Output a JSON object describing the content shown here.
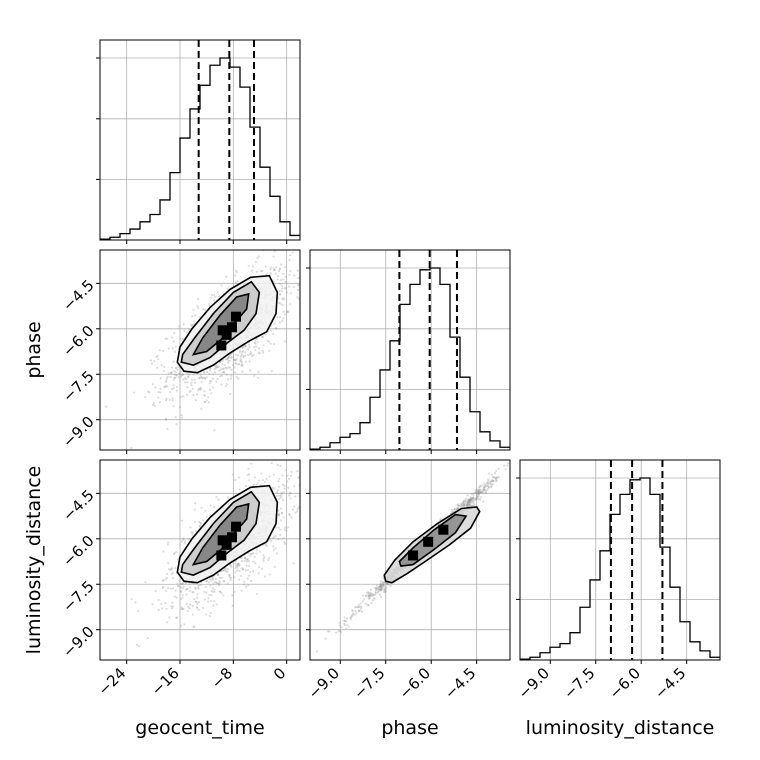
{
  "chart_data": {
    "type": "corner",
    "parameters": [
      "geocent_time",
      "phase",
      "luminosity_distance"
    ],
    "axis_labels": {
      "x": [
        "geocent_time",
        "phase",
        "luminosity_distance"
      ],
      "y_row2": "phase",
      "y_row3": "luminosity_distance"
    },
    "ranges": {
      "geocent_time": [
        -28,
        2
      ],
      "phase": [
        -10.0,
        -3.4
      ],
      "luminosity_distance": [
        -10.0,
        -3.4
      ]
    },
    "ticks": {
      "geocent_time": [
        "-24",
        "-16",
        "-8",
        "0"
      ],
      "phase": [
        "-9.0",
        "-7.5",
        "-6.0",
        "-4.5"
      ],
      "luminosity_distance": [
        "-9.0",
        "-7.5",
        "-6.0",
        "-4.5"
      ]
    },
    "grid": true,
    "histograms": [
      {
        "parameter": "geocent_time",
        "bin_edges": [
          -28,
          -26.5,
          -25,
          -23.5,
          -22,
          -20.5,
          -19,
          -17.5,
          -16,
          -14.5,
          -13,
          -11.5,
          -10,
          -8.5,
          -7,
          -5.5,
          -4,
          -2.5,
          -1,
          0.5,
          2
        ],
        "counts": [
          0.005,
          0.015,
          0.035,
          0.06,
          0.1,
          0.14,
          0.22,
          0.37,
          0.56,
          0.72,
          0.85,
          0.96,
          1.0,
          0.95,
          0.84,
          0.62,
          0.4,
          0.24,
          0.1,
          0.025
        ],
        "quantiles": [
          -13.2,
          -8.6,
          -4.9
        ]
      },
      {
        "parameter": "phase",
        "bin_edges": [
          -10.0,
          -9.67,
          -9.34,
          -9.01,
          -8.68,
          -8.35,
          -8.02,
          -7.69,
          -7.36,
          -7.03,
          -6.7,
          -6.37,
          -6.04,
          -5.71,
          -5.38,
          -5.05,
          -4.72,
          -4.39,
          -4.06,
          -3.73,
          -3.4
        ],
        "counts": [
          0.005,
          0.015,
          0.04,
          0.07,
          0.09,
          0.15,
          0.29,
          0.44,
          0.6,
          0.8,
          0.91,
          0.99,
          1.0,
          0.91,
          0.62,
          0.4,
          0.21,
          0.1,
          0.05,
          0.015
        ],
        "quantiles": [
          -7.05,
          -6.05,
          -5.15
        ]
      },
      {
        "parameter": "luminosity_distance",
        "bin_edges": [
          -10.0,
          -9.67,
          -9.34,
          -9.01,
          -8.68,
          -8.35,
          -8.02,
          -7.69,
          -7.36,
          -7.03,
          -6.7,
          -6.37,
          -6.04,
          -5.71,
          -5.38,
          -5.05,
          -4.72,
          -4.39,
          -4.06,
          -3.73,
          -3.4
        ],
        "counts": [
          0.005,
          0.015,
          0.04,
          0.07,
          0.09,
          0.15,
          0.29,
          0.44,
          0.6,
          0.8,
          0.91,
          0.99,
          1.0,
          0.91,
          0.62,
          0.4,
          0.21,
          0.1,
          0.05,
          0.015
        ],
        "quantiles": [
          -7.0,
          -6.3,
          -5.3
        ]
      }
    ],
    "pairs": [
      {
        "x": "geocent_time",
        "y": "phase",
        "center": [
          -8.5,
          -6.1
        ],
        "contours": [
          [
            [
              -16.4,
              -7.1
            ],
            [
              -15.4,
              -7.4
            ],
            [
              -13.4,
              -7.45
            ],
            [
              -11,
              -7.2
            ],
            [
              -8.5,
              -6.8
            ],
            [
              -5.6,
              -6.4
            ],
            [
              -3,
              -6.1
            ],
            [
              -1.6,
              -5.5
            ],
            [
              -1.4,
              -4.8
            ],
            [
              -2.6,
              -4.25
            ],
            [
              -5.4,
              -4.3
            ],
            [
              -8.5,
              -4.7
            ],
            [
              -11.5,
              -5.3
            ],
            [
              -14.2,
              -6.0
            ],
            [
              -16,
              -6.6
            ],
            [
              -16.4,
              -7.1
            ]
          ],
          [
            [
              -15.8,
              -7.1
            ],
            [
              -14,
              -7.2
            ],
            [
              -11.5,
              -6.95
            ],
            [
              -8.8,
              -6.45
            ],
            [
              -6.4,
              -6.05
            ],
            [
              -4.6,
              -5.5
            ],
            [
              -4.1,
              -4.8
            ],
            [
              -5.3,
              -4.45
            ],
            [
              -8,
              -4.8
            ],
            [
              -11,
              -5.5
            ],
            [
              -13.8,
              -6.3
            ],
            [
              -15.6,
              -6.85
            ],
            [
              -15.8,
              -7.1
            ]
          ],
          [
            [
              -14,
              -6.85
            ],
            [
              -12,
              -6.75
            ],
            [
              -9.8,
              -6.35
            ],
            [
              -8,
              -5.85
            ],
            [
              -6,
              -5.35
            ],
            [
              -5.7,
              -4.85
            ],
            [
              -7.5,
              -4.95
            ],
            [
              -10,
              -5.55
            ],
            [
              -12.6,
              -6.3
            ],
            [
              -14,
              -6.85
            ]
          ]
        ]
      },
      {
        "x": "geocent_time",
        "y": "luminosity_distance",
        "center": [
          -8.5,
          -6.1
        ],
        "contours": [
          [
            [
              -16.4,
              -7.1
            ],
            [
              -15.4,
              -7.4
            ],
            [
              -13.4,
              -7.45
            ],
            [
              -11,
              -7.2
            ],
            [
              -8.5,
              -6.8
            ],
            [
              -5.6,
              -6.4
            ],
            [
              -3,
              -6.1
            ],
            [
              -1.6,
              -5.5
            ],
            [
              -1.4,
              -4.8
            ],
            [
              -2.6,
              -4.25
            ],
            [
              -5.4,
              -4.3
            ],
            [
              -8.5,
              -4.7
            ],
            [
              -11.5,
              -5.3
            ],
            [
              -14.2,
              -6.0
            ],
            [
              -16,
              -6.6
            ],
            [
              -16.4,
              -7.1
            ]
          ],
          [
            [
              -15.8,
              -7.1
            ],
            [
              -14,
              -7.2
            ],
            [
              -11.5,
              -6.95
            ],
            [
              -8.8,
              -6.45
            ],
            [
              -6.4,
              -6.05
            ],
            [
              -4.6,
              -5.5
            ],
            [
              -4.1,
              -4.8
            ],
            [
              -5.3,
              -4.45
            ],
            [
              -8,
              -4.8
            ],
            [
              -11,
              -5.5
            ],
            [
              -13.8,
              -6.3
            ],
            [
              -15.6,
              -6.85
            ],
            [
              -15.8,
              -7.1
            ]
          ],
          [
            [
              -14,
              -6.85
            ],
            [
              -12,
              -6.75
            ],
            [
              -9.8,
              -6.35
            ],
            [
              -8,
              -5.85
            ],
            [
              -6,
              -5.35
            ],
            [
              -5.7,
              -4.85
            ],
            [
              -7.5,
              -4.95
            ],
            [
              -10,
              -5.55
            ],
            [
              -12.6,
              -6.3
            ],
            [
              -14,
              -6.85
            ]
          ]
        ]
      },
      {
        "x": "phase",
        "y": "luminosity_distance",
        "center": [
          -6.1,
          -6.1
        ],
        "contours": [
          [
            [
              -7.5,
              -7.4
            ],
            [
              -7.3,
              -7.45
            ],
            [
              -6.8,
              -7.15
            ],
            [
              -6.2,
              -6.75
            ],
            [
              -5.4,
              -6.2
            ],
            [
              -4.7,
              -5.65
            ],
            [
              -4.4,
              -5.1
            ],
            [
              -4.5,
              -4.95
            ],
            [
              -5.0,
              -5.0
            ],
            [
              -5.8,
              -5.5
            ],
            [
              -6.6,
              -6.1
            ],
            [
              -7.2,
              -6.7
            ],
            [
              -7.55,
              -7.2
            ],
            [
              -7.5,
              -7.4
            ]
          ],
          [
            [
              -7.0,
              -6.9
            ],
            [
              -6.6,
              -6.85
            ],
            [
              -5.9,
              -6.35
            ],
            [
              -5.2,
              -5.8
            ],
            [
              -4.85,
              -5.25
            ],
            [
              -5.2,
              -5.2
            ],
            [
              -5.9,
              -5.7
            ],
            [
              -6.6,
              -6.3
            ],
            [
              -7.05,
              -6.75
            ],
            [
              -7.0,
              -6.9
            ]
          ]
        ]
      }
    ]
  }
}
